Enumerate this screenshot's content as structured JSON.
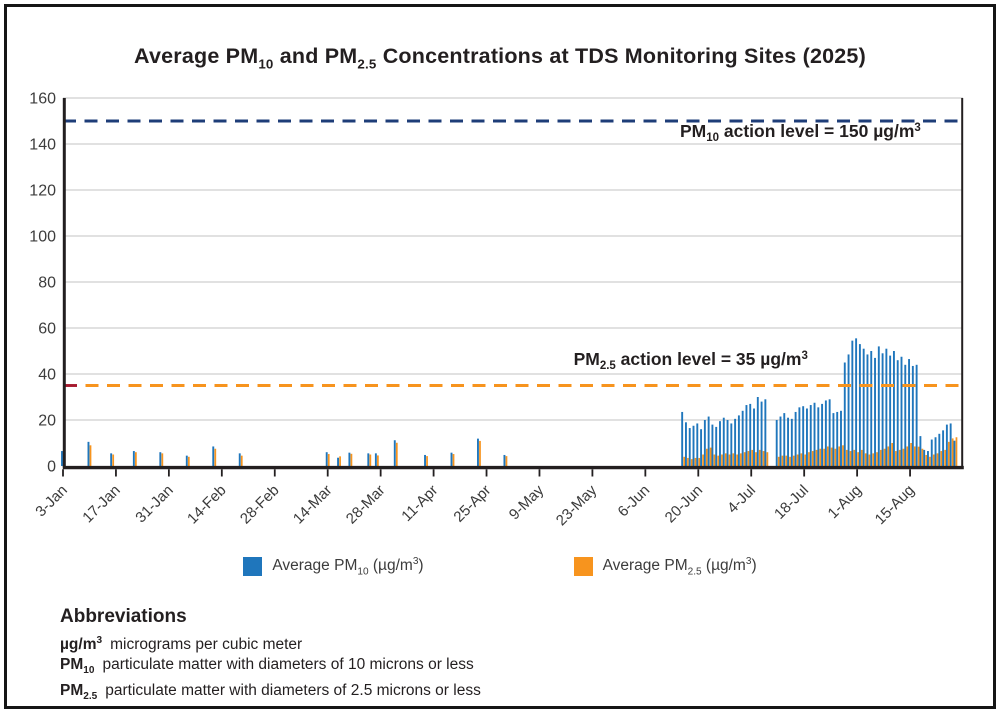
{
  "title": {
    "p1": "Average PM",
    "sub1": "10",
    "p2": " and PM",
    "sub2": "2.5",
    "p3": " Concentrations at TDS Monitoring Sites (2025)"
  },
  "chart_data": {
    "type": "bar",
    "title": "Average PM10 and PM2.5 Concentrations at TDS Monitoring Sites (2025)",
    "xlabel": "",
    "ylabel": "",
    "ylim": [
      0,
      160
    ],
    "ytick_step": 20,
    "grid": "horizontal",
    "x_day_span": 238,
    "ticks": [
      {
        "day": 0,
        "label": "3-Jan"
      },
      {
        "day": 14,
        "label": "17-Jan"
      },
      {
        "day": 28,
        "label": "31-Jan"
      },
      {
        "day": 42,
        "label": "14-Feb"
      },
      {
        "day": 56,
        "label": "28-Feb"
      },
      {
        "day": 70,
        "label": "14-Mar"
      },
      {
        "day": 84,
        "label": "28-Mar"
      },
      {
        "day": 98,
        "label": "11-Apr"
      },
      {
        "day": 112,
        "label": "25-Apr"
      },
      {
        "day": 126,
        "label": "9-May"
      },
      {
        "day": 140,
        "label": "23-May"
      },
      {
        "day": 154,
        "label": "6-Jun"
      },
      {
        "day": 168,
        "label": "20-Jun"
      },
      {
        "day": 182,
        "label": "4-Jul"
      },
      {
        "day": 196,
        "label": "18-Jul"
      },
      {
        "day": 210,
        "label": "1-Aug"
      },
      {
        "day": 224,
        "label": "15-Aug"
      }
    ],
    "action_levels": [
      {
        "value": 150,
        "line_color": "#1e3d78",
        "label": {
          "p1": "PM",
          "sub": "10",
          "p2": " action level = 150 µg/m",
          "sup": "3"
        },
        "label_x_day": 195,
        "label_y_value": 143
      },
      {
        "value": 35,
        "line_color": "#f7941e",
        "first_dash_color": "#a6192e",
        "label": {
          "p1": "PM",
          "sub": "2.5",
          "p2": " action level = 35 µg/m",
          "sup": "3"
        },
        "label_x_day": 166,
        "label_y_value": 44
      }
    ],
    "series": [
      {
        "name": "Average PM10 (µg/m³)",
        "color": "#1f76bc"
      },
      {
        "name": "Average PM2.5 (µg/m³)",
        "color": "#f7941e"
      }
    ],
    "points_columns": [
      "day",
      "date",
      "pm10",
      "pm25"
    ],
    "points": [
      [
        0,
        "3-Jan",
        6.5,
        5.5
      ],
      [
        7,
        "10-Jan",
        10.5,
        9
      ],
      [
        13,
        "16-Jan",
        5.5,
        5
      ],
      [
        19,
        "22-Jan",
        6.5,
        6
      ],
      [
        26,
        "29-Jan",
        6,
        5.5
      ],
      [
        33,
        "5-Feb",
        4.5,
        4
      ],
      [
        40,
        "12-Feb",
        8.5,
        7.5
      ],
      [
        47,
        "19-Feb",
        5.5,
        4.5
      ],
      [
        70,
        "14-Mar",
        6,
        5.2
      ],
      [
        73,
        "17-Mar",
        3.6,
        4.2
      ],
      [
        76,
        "20-Mar",
        5.8,
        5.3
      ],
      [
        81,
        "25-Mar",
        5.5,
        5
      ],
      [
        83,
        "27-Mar",
        5.5,
        4.6
      ],
      [
        88,
        "1-Apr",
        11.2,
        10.1
      ],
      [
        96,
        "9-Apr",
        4.8,
        4.3
      ],
      [
        103,
        "16-Apr",
        5.8,
        5.2
      ],
      [
        110,
        "23-Apr",
        11.9,
        10.9
      ],
      [
        117,
        "30-Apr",
        4.8,
        4.3
      ],
      [
        164,
        "16-Jun",
        23.5,
        4
      ],
      [
        165,
        "17-Jun",
        19,
        3.5
      ],
      [
        166,
        "18-Jun",
        16.5,
        3
      ],
      [
        167,
        "19-Jun",
        17.5,
        3.5
      ],
      [
        168,
        "20-Jun",
        18.5,
        3.5
      ],
      [
        169,
        "21-Jun",
        16,
        5
      ],
      [
        170,
        "22-Jun",
        20,
        7.5
      ],
      [
        171,
        "23-Jun",
        21.5,
        8
      ],
      [
        172,
        "24-Jun",
        18,
        5
      ],
      [
        173,
        "25-Jun",
        17,
        4.5
      ],
      [
        174,
        "26-Jun",
        19.5,
        5
      ],
      [
        175,
        "27-Jun",
        21,
        5.5
      ],
      [
        176,
        "28-Jun",
        20,
        5
      ],
      [
        177,
        "29-Jun",
        18.5,
        5.5
      ],
      [
        178,
        "30-Jun",
        20.5,
        5
      ],
      [
        179,
        "1-Jul",
        22,
        5.5
      ],
      [
        180,
        "2-Jul",
        24,
        6
      ],
      [
        181,
        "3-Jul",
        26.5,
        6.5
      ],
      [
        182,
        "4-Jul",
        27,
        7
      ],
      [
        183,
        "5-Jul",
        25,
        6
      ],
      [
        184,
        "6-Jul",
        30,
        7
      ],
      [
        185,
        "7-Jul",
        28,
        6.5
      ],
      [
        186,
        "8-Jul",
        29,
        6
      ],
      [
        189,
        "11-Jul",
        20,
        4
      ],
      [
        190,
        "12-Jul",
        21.5,
        4.5
      ],
      [
        191,
        "13-Jul",
        23,
        4.5
      ],
      [
        192,
        "14-Jul",
        21,
        4
      ],
      [
        193,
        "15-Jul",
        20.5,
        4.5
      ],
      [
        194,
        "16-Jul",
        23.5,
        5
      ],
      [
        195,
        "17-Jul",
        25.5,
        5.5
      ],
      [
        196,
        "18-Jul",
        26,
        5
      ],
      [
        197,
        "19-Jul",
        25,
        6
      ],
      [
        198,
        "20-Jul",
        26.5,
        6.5
      ],
      [
        199,
        "21-Jul",
        27.5,
        7
      ],
      [
        200,
        "22-Jul",
        25.5,
        7.5
      ],
      [
        201,
        "23-Jul",
        27,
        7.5
      ],
      [
        202,
        "24-Jul",
        28.5,
        8.5
      ],
      [
        203,
        "25-Jul",
        29,
        8
      ],
      [
        204,
        "26-Jul",
        23,
        7.5
      ],
      [
        205,
        "27-Jul",
        23.5,
        8.5
      ],
      [
        206,
        "28-Jul",
        24,
        9
      ],
      [
        207,
        "29-Jul",
        45,
        7
      ],
      [
        208,
        "30-Jul",
        48.5,
        6.5
      ],
      [
        209,
        "31-Jul",
        54.5,
        7
      ],
      [
        210,
        "1-Aug",
        55.5,
        6
      ],
      [
        211,
        "2-Aug",
        53,
        7
      ],
      [
        212,
        "3-Aug",
        51,
        5.5
      ],
      [
        213,
        "4-Aug",
        48.5,
        5
      ],
      [
        214,
        "5-Aug",
        50,
        5.5
      ],
      [
        215,
        "6-Aug",
        47,
        6
      ],
      [
        216,
        "7-Aug",
        52,
        7
      ],
      [
        217,
        "8-Aug",
        49,
        7.5
      ],
      [
        218,
        "9-Aug",
        51,
        8.5
      ],
      [
        219,
        "10-Aug",
        48,
        10
      ],
      [
        220,
        "11-Aug",
        50,
        6.5
      ],
      [
        221,
        "12-Aug",
        46,
        7
      ],
      [
        222,
        "13-Aug",
        47.5,
        7.5
      ],
      [
        223,
        "14-Aug",
        44,
        8.5
      ],
      [
        224,
        "15-Aug",
        46.5,
        10
      ],
      [
        225,
        "16-Aug",
        43.5,
        8.5
      ],
      [
        226,
        "17-Aug",
        44,
        8.4
      ],
      [
        227,
        "18-Aug",
        13,
        7.5
      ],
      [
        228,
        "19-Aug",
        7,
        4.8
      ],
      [
        229,
        "20-Aug",
        6.5,
        4
      ],
      [
        230,
        "21-Aug",
        11.5,
        5
      ],
      [
        231,
        "22-Aug",
        12.5,
        5.5
      ],
      [
        232,
        "23-Aug",
        14,
        6.5
      ],
      [
        233,
        "24-Aug",
        15.5,
        7
      ],
      [
        234,
        "25-Aug",
        18,
        10.5
      ],
      [
        235,
        "26-Aug",
        18.5,
        12
      ],
      [
        236,
        "27-Aug",
        11,
        12.5
      ]
    ]
  },
  "legend": {
    "items": [
      {
        "color": "#1f76bc",
        "prefix": "Average PM",
        "sub": "10",
        "mid": " (µg/m",
        "sup": "3",
        "end": ")"
      },
      {
        "color": "#f7941e",
        "prefix": "Average PM",
        "sub": "2.5",
        "mid": " (µg/m",
        "sup": "3",
        "end": ")"
      }
    ]
  },
  "abbreviations": {
    "heading": "Abbreviations",
    "rows": [
      {
        "term": "µg/m",
        "sup": "3",
        "definition": "micrograms per cubic meter"
      },
      {
        "term": "PM",
        "sub": "10",
        "definition": "particulate matter with diameters of 10 microns or less"
      },
      {
        "term": "PM",
        "sub": "2.5",
        "definition": "particulate matter with diameters of 2.5 microns or less"
      }
    ]
  },
  "colors": {
    "pm10_bar": "#1f76bc",
    "pm25_bar": "#f7941e",
    "pm10_action_line": "#1e3d78",
    "pm25_action_line": "#f7941e",
    "pm25_action_first_dash": "#a6192e",
    "gridline": "#cfcfcf",
    "axis": "#231f20"
  }
}
